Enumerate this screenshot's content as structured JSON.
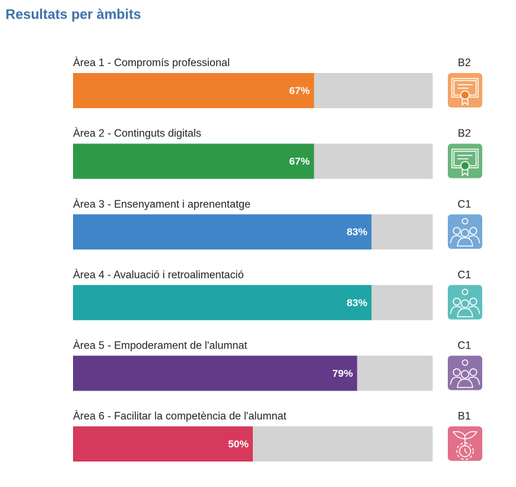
{
  "chart_data": {
    "type": "bar",
    "orientation": "horizontal",
    "title": "Resultats per àmbits",
    "categories": [
      "Àrea 1 - Compromís professional",
      "Àrea 2 - Continguts digitals",
      "Àrea 3 - Ensenyament i aprenentatge",
      "Àrea 4 - Avaluació i retroalimentació",
      "Àrea 5 - Empoderament de l'alumnat",
      "Àrea 6 - Facilitar la competència de l'alumnat"
    ],
    "values": [
      67,
      67,
      83,
      83,
      79,
      50
    ],
    "value_labels": [
      "67%",
      "67%",
      "83%",
      "83%",
      "79%",
      "50%"
    ],
    "levels": [
      "B2",
      "B2",
      "C1",
      "C1",
      "C1",
      "B1"
    ],
    "colors": [
      "#f07f2a",
      "#2e9a48",
      "#3f86c8",
      "#1fa5a5",
      "#623a87",
      "#d6395b"
    ],
    "track_color": "#d3d3d3",
    "xlim": [
      0,
      100
    ]
  }
}
